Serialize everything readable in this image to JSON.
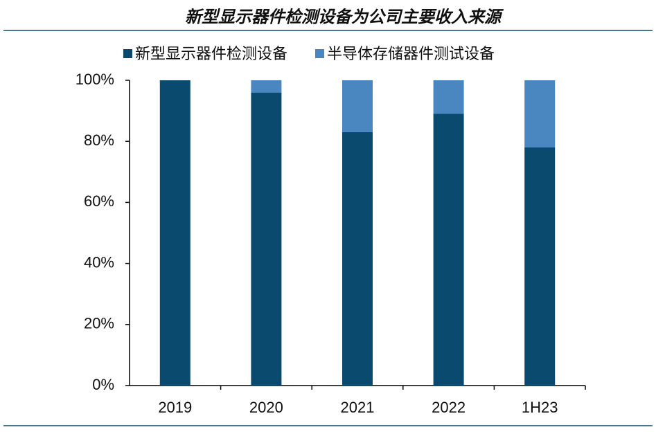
{
  "chart_data": {
    "type": "stacked-bar",
    "title": "新型显示器件检测设备为公司主要收入来源",
    "categories": [
      "2019",
      "2020",
      "2021",
      "2022",
      "1H23"
    ],
    "series": [
      {
        "name": "新型显示器件检测设备",
        "color": "#0b4a6f",
        "values": [
          100,
          96,
          83,
          89,
          78
        ]
      },
      {
        "name": "半导体存储器件测试设备",
        "color": "#4a86c0",
        "values": [
          0,
          4,
          17,
          11,
          22
        ]
      }
    ],
    "ylim": [
      0,
      100
    ],
    "yticks": [
      {
        "value": 0,
        "label": "0%"
      },
      {
        "value": 20,
        "label": "20%"
      },
      {
        "value": 40,
        "label": "40%"
      },
      {
        "value": 60,
        "label": "60%"
      },
      {
        "value": 80,
        "label": "80%"
      },
      {
        "value": 100,
        "label": "100%"
      }
    ]
  }
}
